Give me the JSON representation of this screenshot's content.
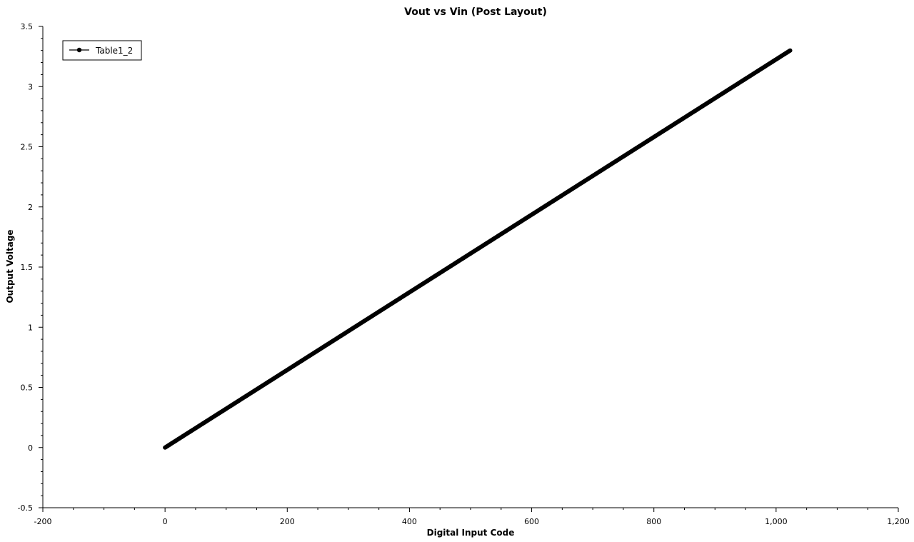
{
  "chart_data": {
    "type": "line",
    "title": "Vout vs Vin (Post Layout)",
    "xlabel": "Digital Input Code",
    "ylabel": "Output Voltage",
    "xlim": [
      -200,
      1200
    ],
    "ylim": [
      -0.5,
      3.5
    ],
    "x_ticks": [
      -200,
      0,
      200,
      400,
      600,
      800,
      1000,
      1200
    ],
    "x_tick_labels": [
      "-200",
      "0",
      "200",
      "400",
      "600",
      "800",
      "1,000",
      "1,200"
    ],
    "y_ticks": [
      -0.5,
      0,
      0.5,
      1,
      1.5,
      2,
      2.5,
      3,
      3.5
    ],
    "y_tick_labels": [
      "-0.5",
      "0",
      "0.5",
      "1",
      "1.5",
      "2",
      "2.5",
      "3",
      "3.5"
    ],
    "grid": false,
    "legend_position": "top-left",
    "series": [
      {
        "name": "Table1_2",
        "color": "#000000",
        "marker": "circle",
        "x_start": 0,
        "x_end": 1023,
        "x_step": 1,
        "y_start": 0,
        "y_end": 3.3
      }
    ]
  }
}
